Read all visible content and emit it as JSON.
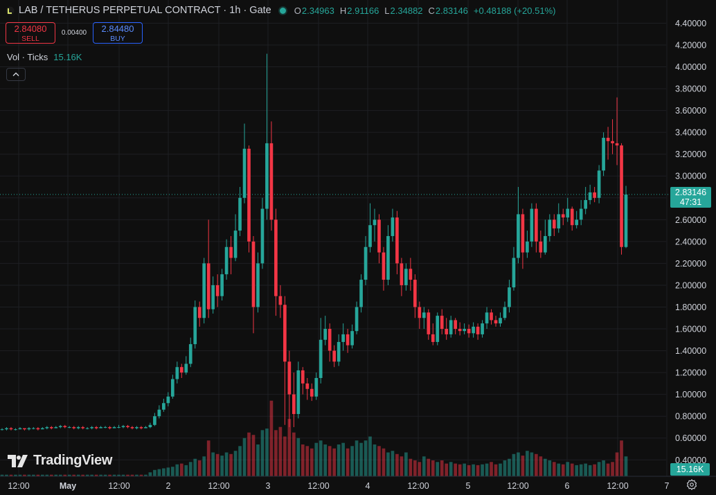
{
  "header": {
    "symbol_title": "LAB / TETHERUS PERPETUAL CONTRACT · 1h · Gate",
    "status_dot_color": "#26a69a",
    "ohlc": {
      "o_label": "O",
      "o": "2.34963",
      "h_label": "H",
      "h": "2.91166",
      "l_label": "L",
      "l": "2.34882",
      "c_label": "C",
      "c": "2.83146",
      "change": "+0.48188 (+20.51%)"
    }
  },
  "trade": {
    "sell_price": "2.84080",
    "sell_label": "SELL",
    "spread": "0.00400",
    "buy_price": "2.84480",
    "buy_label": "BUY"
  },
  "volume": {
    "label": "Vol · Ticks",
    "value": "15.16K",
    "tag": "15.16K"
  },
  "last_price": {
    "value": "2.83146",
    "countdown": "47:31"
  },
  "branding": {
    "logo_text": "TradingView"
  },
  "colors": {
    "up": "#26a69a",
    "down": "#f23645",
    "background": "#0f0f0f",
    "grid": "#1e1f23"
  },
  "icons": {
    "settings": "gear-icon",
    "collapse": "chevron-up-icon",
    "logo": "tradingview-logo-icon"
  },
  "chart_data": {
    "type": "candlestick",
    "y_ticks": [
      "4.40000",
      "4.20000",
      "4.00000",
      "3.80000",
      "3.60000",
      "3.40000",
      "3.20000",
      "3.00000",
      "2.80000",
      "2.60000",
      "2.40000",
      "2.20000",
      "2.00000",
      "1.80000",
      "1.60000",
      "1.40000",
      "1.20000",
      "1.00000",
      "0.80000",
      "0.60000",
      "0.40000"
    ],
    "x_ticks": [
      "12:00",
      "May",
      "12:00",
      "2",
      "12:00",
      "3",
      "12:00",
      "4",
      "12:00",
      "5",
      "12:00",
      "6",
      "12:00",
      "7"
    ],
    "ylim": [
      0.37,
      4.46
    ],
    "last_price": 2.83146,
    "candles": [
      [
        0.68,
        0.68,
        0.67,
        0.69
      ],
      [
        0.68,
        0.69,
        0.67,
        0.7
      ],
      [
        0.69,
        0.68,
        0.67,
        0.7
      ],
      [
        0.68,
        0.68,
        0.67,
        0.69
      ],
      [
        0.68,
        0.69,
        0.68,
        0.7
      ],
      [
        0.69,
        0.68,
        0.67,
        0.69
      ],
      [
        0.68,
        0.69,
        0.67,
        0.7
      ],
      [
        0.69,
        0.69,
        0.68,
        0.7
      ],
      [
        0.69,
        0.68,
        0.67,
        0.7
      ],
      [
        0.68,
        0.69,
        0.68,
        0.7
      ],
      [
        0.69,
        0.7,
        0.68,
        0.71
      ],
      [
        0.7,
        0.69,
        0.68,
        0.71
      ],
      [
        0.69,
        0.7,
        0.69,
        0.71
      ],
      [
        0.7,
        0.71,
        0.69,
        0.72
      ],
      [
        0.71,
        0.7,
        0.69,
        0.72
      ],
      [
        0.7,
        0.7,
        0.69,
        0.71
      ],
      [
        0.7,
        0.69,
        0.68,
        0.71
      ],
      [
        0.69,
        0.7,
        0.68,
        0.71
      ],
      [
        0.7,
        0.69,
        0.68,
        0.71
      ],
      [
        0.69,
        0.69,
        0.68,
        0.7
      ],
      [
        0.69,
        0.7,
        0.68,
        0.71
      ],
      [
        0.7,
        0.69,
        0.68,
        0.71
      ],
      [
        0.69,
        0.7,
        0.69,
        0.71
      ],
      [
        0.7,
        0.7,
        0.69,
        0.71
      ],
      [
        0.7,
        0.69,
        0.68,
        0.71
      ],
      [
        0.69,
        0.7,
        0.69,
        0.71
      ],
      [
        0.7,
        0.7,
        0.69,
        0.72
      ],
      [
        0.7,
        0.71,
        0.69,
        0.72
      ],
      [
        0.71,
        0.7,
        0.69,
        0.72
      ],
      [
        0.7,
        0.69,
        0.68,
        0.71
      ],
      [
        0.69,
        0.7,
        0.68,
        0.71
      ],
      [
        0.7,
        0.69,
        0.68,
        0.71
      ],
      [
        0.69,
        0.7,
        0.69,
        0.71
      ],
      [
        0.7,
        0.72,
        0.69,
        0.74
      ],
      [
        0.72,
        0.8,
        0.71,
        0.83
      ],
      [
        0.8,
        0.86,
        0.78,
        0.9
      ],
      [
        0.86,
        0.92,
        0.84,
        0.96
      ],
      [
        0.92,
        0.98,
        0.89,
        1.02
      ],
      [
        0.98,
        1.14,
        0.96,
        1.18
      ],
      [
        1.14,
        1.25,
        1.1,
        1.3
      ],
      [
        1.25,
        1.2,
        1.15,
        1.28
      ],
      [
        1.2,
        1.28,
        1.18,
        1.35
      ],
      [
        1.28,
        1.46,
        1.25,
        1.52
      ],
      [
        1.46,
        1.8,
        1.42,
        1.86
      ],
      [
        1.8,
        1.7,
        1.62,
        1.85
      ],
      [
        1.7,
        2.2,
        1.65,
        2.25
      ],
      [
        2.2,
        1.78,
        1.7,
        2.6
      ],
      [
        1.78,
        2.0,
        1.74,
        2.08
      ],
      [
        2.0,
        1.9,
        1.8,
        2.1
      ],
      [
        1.9,
        2.1,
        1.86,
        2.15
      ],
      [
        2.1,
        2.35,
        2.05,
        2.42
      ],
      [
        2.35,
        2.25,
        2.1,
        2.45
      ],
      [
        2.25,
        2.5,
        2.22,
        2.65
      ],
      [
        2.5,
        2.8,
        2.45,
        2.9
      ],
      [
        2.8,
        3.25,
        2.75,
        3.48
      ],
      [
        3.25,
        2.4,
        2.3,
        3.28
      ],
      [
        2.4,
        1.8,
        1.56,
        2.45
      ],
      [
        1.8,
        2.2,
        1.75,
        2.3
      ],
      [
        2.2,
        2.7,
        2.15,
        2.8
      ],
      [
        2.7,
        3.3,
        2.6,
        4.12
      ],
      [
        3.3,
        2.6,
        2.5,
        3.5
      ],
      [
        2.6,
        1.9,
        1.72,
        2.7
      ],
      [
        1.9,
        1.82,
        1.7,
        2.0
      ],
      [
        1.82,
        1.3,
        0.72,
        1.9
      ],
      [
        1.3,
        1.0,
        0.7,
        1.4
      ],
      [
        1.0,
        0.82,
        0.7,
        1.2
      ],
      [
        0.82,
        1.22,
        0.78,
        1.3
      ],
      [
        1.22,
        1.1,
        1.0,
        1.25
      ],
      [
        1.1,
        1.05,
        0.95,
        1.15
      ],
      [
        1.05,
        0.98,
        0.94,
        1.1
      ],
      [
        0.98,
        1.15,
        0.95,
        1.2
      ],
      [
        1.15,
        1.5,
        1.1,
        1.7
      ],
      [
        1.5,
        1.6,
        1.45,
        1.72
      ],
      [
        1.6,
        1.4,
        1.3,
        1.65
      ],
      [
        1.4,
        1.3,
        1.25,
        1.45
      ],
      [
        1.3,
        1.48,
        1.26,
        1.55
      ],
      [
        1.48,
        1.55,
        1.4,
        1.65
      ],
      [
        1.55,
        1.45,
        1.38,
        1.6
      ],
      [
        1.45,
        1.58,
        1.42,
        1.64
      ],
      [
        1.58,
        1.8,
        1.55,
        1.85
      ],
      [
        1.8,
        2.05,
        1.75,
        2.1
      ],
      [
        2.05,
        2.35,
        2.0,
        2.45
      ],
      [
        2.35,
        2.55,
        2.3,
        2.75
      ],
      [
        2.55,
        2.6,
        2.4,
        2.7
      ],
      [
        2.6,
        2.3,
        2.2,
        2.65
      ],
      [
        2.3,
        2.05,
        1.95,
        2.35
      ],
      [
        2.05,
        2.45,
        2.0,
        2.55
      ],
      [
        2.45,
        2.62,
        2.4,
        2.7
      ],
      [
        2.62,
        2.2,
        2.1,
        2.68
      ],
      [
        2.2,
        2.0,
        1.9,
        2.25
      ],
      [
        2.0,
        2.15,
        1.95,
        2.2
      ],
      [
        2.15,
        2.05,
        1.95,
        2.25
      ],
      [
        2.05,
        1.8,
        1.7,
        2.1
      ],
      [
        1.8,
        1.7,
        1.6,
        1.85
      ],
      [
        1.7,
        1.75,
        1.6,
        1.8
      ],
      [
        1.75,
        1.55,
        1.5,
        1.78
      ],
      [
        1.55,
        1.48,
        1.45,
        1.65
      ],
      [
        1.48,
        1.72,
        1.45,
        1.75
      ],
      [
        1.72,
        1.6,
        1.55,
        1.78
      ],
      [
        1.6,
        1.55,
        1.5,
        1.7
      ],
      [
        1.55,
        1.68,
        1.52,
        1.72
      ],
      [
        1.68,
        1.6,
        1.55,
        1.7
      ],
      [
        1.6,
        1.58,
        1.54,
        1.66
      ],
      [
        1.58,
        1.6,
        1.55,
        1.65
      ],
      [
        1.6,
        1.56,
        1.52,
        1.64
      ],
      [
        1.56,
        1.62,
        1.52,
        1.66
      ],
      [
        1.62,
        1.55,
        1.5,
        1.65
      ],
      [
        1.55,
        1.65,
        1.52,
        1.68
      ],
      [
        1.65,
        1.75,
        1.6,
        1.8
      ],
      [
        1.75,
        1.68,
        1.64,
        1.78
      ],
      [
        1.68,
        1.65,
        1.62,
        1.72
      ],
      [
        1.65,
        1.7,
        1.62,
        1.75
      ],
      [
        1.7,
        1.8,
        1.68,
        1.85
      ],
      [
        1.8,
        1.98,
        1.75,
        2.05
      ],
      [
        1.98,
        2.25,
        1.95,
        2.35
      ],
      [
        2.25,
        2.65,
        2.2,
        2.9
      ],
      [
        2.65,
        2.3,
        2.15,
        2.7
      ],
      [
        2.3,
        2.4,
        2.25,
        2.5
      ],
      [
        2.4,
        2.7,
        2.35,
        2.75
      ],
      [
        2.7,
        2.4,
        2.3,
        2.75
      ],
      [
        2.4,
        2.3,
        2.25,
        2.5
      ],
      [
        2.3,
        2.45,
        2.28,
        2.6
      ],
      [
        2.45,
        2.6,
        2.4,
        2.65
      ],
      [
        2.6,
        2.52,
        2.45,
        2.65
      ],
      [
        2.52,
        2.65,
        2.48,
        2.75
      ],
      [
        2.65,
        2.62,
        2.55,
        2.7
      ],
      [
        2.62,
        2.7,
        2.58,
        2.8
      ],
      [
        2.7,
        2.55,
        2.5,
        2.72
      ],
      [
        2.55,
        2.6,
        2.52,
        2.68
      ],
      [
        2.6,
        2.7,
        2.55,
        2.78
      ],
      [
        2.7,
        2.78,
        2.65,
        2.9
      ],
      [
        2.78,
        2.85,
        2.74,
        2.92
      ],
      [
        2.85,
        2.8,
        2.76,
        2.9
      ],
      [
        2.8,
        3.05,
        2.75,
        3.1
      ],
      [
        3.05,
        3.35,
        3.0,
        3.4
      ],
      [
        3.35,
        3.32,
        3.15,
        3.45
      ],
      [
        3.32,
        3.3,
        3.2,
        3.52
      ],
      [
        3.3,
        3.28,
        3.1,
        3.72
      ],
      [
        3.28,
        2.35,
        2.28,
        3.3
      ],
      [
        2.35,
        2.83,
        2.34,
        2.91
      ]
    ],
    "volumes": [
      0.02,
      0.02,
      0.02,
      0.02,
      0.02,
      0.02,
      0.02,
      0.02,
      0.02,
      0.02,
      0.02,
      0.02,
      0.02,
      0.02,
      0.02,
      0.02,
      0.02,
      0.02,
      0.02,
      0.02,
      0.02,
      0.02,
      0.02,
      0.02,
      0.02,
      0.02,
      0.02,
      0.02,
      0.02,
      0.02,
      0.02,
      0.02,
      0.02,
      0.05,
      0.08,
      0.09,
      0.1,
      0.11,
      0.12,
      0.15,
      0.16,
      0.14,
      0.18,
      0.22,
      0.2,
      0.25,
      0.45,
      0.3,
      0.28,
      0.26,
      0.3,
      0.28,
      0.32,
      0.38,
      0.48,
      0.55,
      0.52,
      0.4,
      0.58,
      0.6,
      0.95,
      0.58,
      0.62,
      0.5,
      0.72,
      0.55,
      0.48,
      0.4,
      0.38,
      0.35,
      0.42,
      0.45,
      0.4,
      0.38,
      0.35,
      0.4,
      0.42,
      0.35,
      0.38,
      0.45,
      0.42,
      0.45,
      0.5,
      0.4,
      0.38,
      0.35,
      0.3,
      0.32,
      0.28,
      0.25,
      0.3,
      0.22,
      0.2,
      0.18,
      0.25,
      0.22,
      0.2,
      0.18,
      0.2,
      0.16,
      0.18,
      0.16,
      0.15,
      0.16,
      0.14,
      0.15,
      0.14,
      0.15,
      0.16,
      0.18,
      0.15,
      0.16,
      0.2,
      0.22,
      0.28,
      0.3,
      0.26,
      0.32,
      0.3,
      0.28,
      0.25,
      0.22,
      0.2,
      0.18,
      0.16,
      0.15,
      0.18,
      0.16,
      0.14,
      0.15,
      0.16,
      0.14,
      0.15,
      0.18,
      0.2,
      0.16,
      0.18,
      0.3,
      0.45,
      0.25
    ]
  }
}
